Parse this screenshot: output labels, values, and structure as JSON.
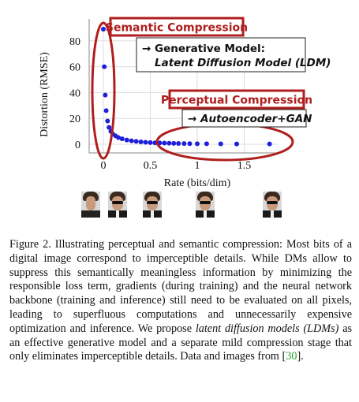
{
  "chart_data": {
    "type": "scatter",
    "xlabel": "Rate (bits/dim)",
    "ylabel": "Distortion (RMSE)",
    "xlim": [
      -0.1,
      1.75
    ],
    "ylim": [
      -4,
      92
    ],
    "xticks": [
      0,
      0.5,
      1,
      1.5
    ],
    "xtick_labels": [
      "0",
      "0.5",
      "1",
      "1.5"
    ],
    "yticks": [
      0,
      20,
      40,
      60,
      80
    ],
    "ytick_labels": [
      "0",
      "20",
      "40",
      "60",
      "80"
    ],
    "grid": true,
    "series": [
      {
        "color": "#1f1fdb",
        "x": [
          0.0,
          0.01,
          0.02,
          0.03,
          0.045,
          0.06,
          0.08,
          0.1,
          0.13,
          0.16,
          0.2,
          0.25,
          0.3,
          0.35,
          0.4,
          0.45,
          0.5,
          0.55,
          0.6,
          0.65,
          0.7,
          0.75,
          0.8,
          0.86,
          0.92,
          1.0,
          1.1,
          1.25,
          1.42,
          1.77
        ],
        "y": [
          89,
          60,
          38,
          26,
          18,
          13,
          10,
          8,
          6.5,
          5.2,
          4.2,
          3.3,
          2.7,
          2.2,
          1.8,
          1.5,
          1.3,
          1.1,
          1.0,
          0.9,
          0.8,
          0.7,
          0.6,
          0.5,
          0.45,
          0.4,
          0.35,
          0.3,
          0.25,
          0.2
        ]
      }
    ],
    "annotations": [
      {
        "text": "Semantic Compression",
        "color": "#b01e1e"
      },
      {
        "text": "Perceptual Compression",
        "color": "#b01e1e"
      },
      {
        "text": "→ Generative Model:",
        "line2": "Latent Diffusion Model (LDM)"
      },
      {
        "text": "→ Autoencoder+GAN"
      }
    ]
  },
  "caption": {
    "p1": "Figure 2. Illustrating perceptual and semantic compression: Most bits of a digital image correspond to imperceptible details. While DMs allow to suppress this semantically meaningless information by minimizing the responsible loss term, gradients (during training) and the neural network backbone (training and inference) still need to be evaluated on all pixels, leading to superfluous computations and unnecessarily expensive optimization and inference.",
    "p2_before": "We propose ",
    "p2_em": "latent diffusion models (LDMs)",
    "p2_after": " as an effective generative model and a separate mild compression stage that only eliminates imperceptible details. Data and images from [",
    "ref": "30",
    "p2_end": "]."
  },
  "colors": {
    "accent_red": "#b01e1e",
    "points_blue": "#1f1fdb",
    "grid": "#dddddd",
    "link_green": "#2a9d2a"
  }
}
